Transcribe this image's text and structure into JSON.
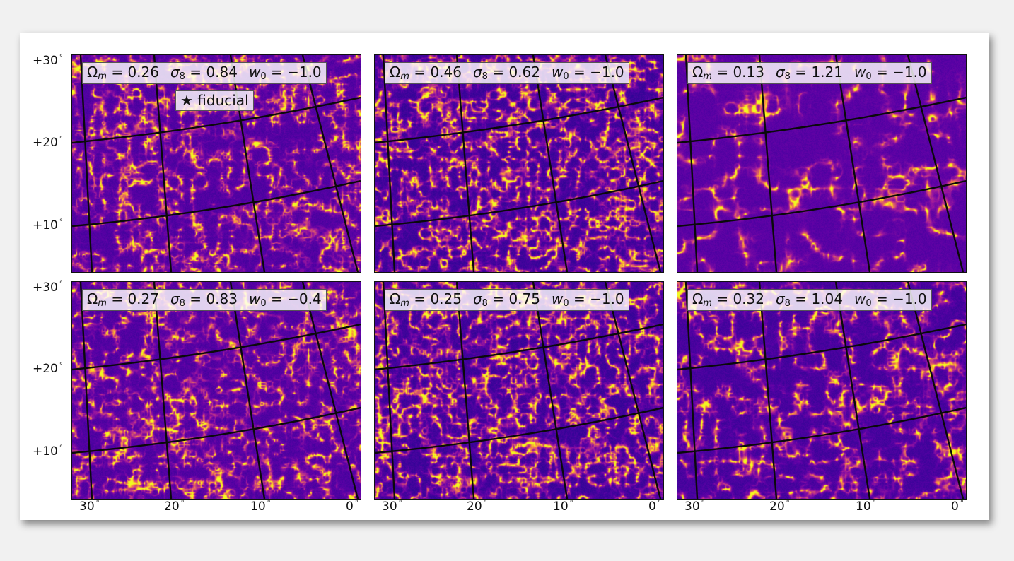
{
  "figure": {
    "panels": [
      {
        "omega_m": "0.26",
        "sigma_8": "0.84",
        "w_0": "−1.0",
        "annotation": "★ fiducial",
        "style": "dense"
      },
      {
        "omega_m": "0.46",
        "sigma_8": "0.62",
        "w_0": "−1.0",
        "style": "fine"
      },
      {
        "omega_m": "0.13",
        "sigma_8": "1.21",
        "w_0": "−1.0",
        "style": "strong"
      },
      {
        "omega_m": "0.27",
        "sigma_8": "0.83",
        "w_0": "−0.4",
        "style": "dense"
      },
      {
        "omega_m": "0.25",
        "sigma_8": "0.75",
        "w_0": "−1.0",
        "style": "fine"
      },
      {
        "omega_m": "0.32",
        "sigma_8": "1.04",
        "w_0": "−1.0",
        "style": "medium"
      }
    ],
    "y_ticks": [
      "+30",
      "+20",
      "+10"
    ],
    "x_ticks": [
      "30",
      "20",
      "10",
      "0"
    ],
    "degree_symbol": "°",
    "symbols": {
      "omega": "Ω",
      "omega_sub": "m",
      "sigma": "σ",
      "sigma_sub": "8",
      "w": "w",
      "w_sub": "0",
      "equals": " = "
    },
    "colormap": [
      "#0d0887",
      "#5c01a6",
      "#9c179e",
      "#cc4778",
      "#ed7953",
      "#fdb42f",
      "#f0f921"
    ]
  }
}
